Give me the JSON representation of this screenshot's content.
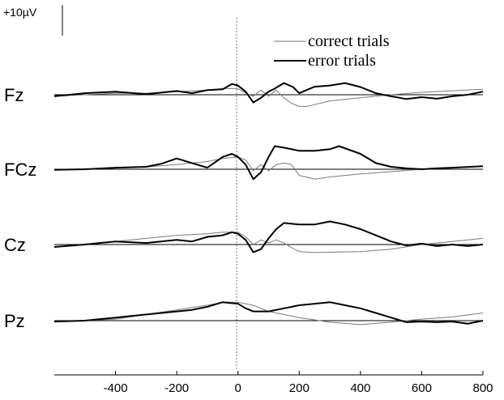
{
  "chart_data": {
    "type": "line",
    "title": "",
    "xlabel": "",
    "ylabel": "",
    "xlim": [
      -600,
      800
    ],
    "x_ticks": [
      -400,
      -200,
      0,
      200,
      400,
      600,
      800
    ],
    "x_tick_labels": [
      "-400",
      "-200",
      "0",
      "200",
      "400",
      "600",
      "800"
    ],
    "grid": false,
    "legend_position": "top-right",
    "scale_bar": {
      "label": "+10µV",
      "value_uV": 10
    },
    "event_marker_x": 0,
    "series_style": {
      "correct trials": {
        "color": "#7a7a7a",
        "width": 1.0
      },
      "error trials": {
        "color": "#000000",
        "width": 2.0
      }
    },
    "legend": [
      "correct trials",
      "error trials"
    ],
    "channels": [
      {
        "name": "Fz",
        "series": [
          {
            "name": "correct trials",
            "x": [
              -600,
              -500,
              -400,
              -300,
              -200,
              -100,
              -50,
              0,
              25,
              50,
              75,
              100,
              125,
              150,
              175,
              200,
              225,
              250,
              300,
              400,
              500,
              600,
              700,
              800
            ],
            "y": [
              -0.5,
              0,
              0.5,
              0.5,
              1,
              1.5,
              2,
              2,
              0.5,
              -0.5,
              1.5,
              -0.5,
              1.5,
              -1,
              -2.8,
              -3.8,
              -3.8,
              -3.2,
              -2,
              -1,
              0,
              0.8,
              1.3,
              1.8
            ]
          },
          {
            "name": "error trials",
            "x": [
              -600,
              -500,
              -400,
              -300,
              -200,
              -150,
              -100,
              -50,
              -20,
              0,
              25,
              50,
              75,
              100,
              120,
              150,
              180,
              200,
              250,
              300,
              350,
              400,
              450,
              500,
              550,
              600,
              650,
              700,
              750,
              800
            ],
            "y": [
              -0.5,
              0.5,
              1,
              0.2,
              1.2,
              0.5,
              1.5,
              1.8,
              3.5,
              3,
              1,
              -2.5,
              -1,
              1,
              2,
              3.8,
              2.5,
              0.5,
              2.6,
              3,
              3.8,
              2.5,
              0.5,
              -0.5,
              -1.4,
              -0.8,
              -1.3,
              -0.5,
              0,
              1
            ]
          }
        ]
      },
      {
        "name": "FCz",
        "series": [
          {
            "name": "correct trials",
            "x": [
              -600,
              -500,
              -400,
              -300,
              -200,
              -100,
              -50,
              0,
              25,
              50,
              75,
              100,
              125,
              150,
              175,
              200,
              250,
              300,
              400,
              500,
              600,
              700,
              800
            ],
            "y": [
              -0.3,
              0,
              0.4,
              0.8,
              1.5,
              2.5,
              3.5,
              4,
              3,
              -0.5,
              1.5,
              -0.5,
              1.5,
              2,
              1.5,
              -2,
              -3.2,
              -2.5,
              -1.5,
              -0.8,
              0,
              0.5,
              1
            ]
          },
          {
            "name": "error trials",
            "x": [
              -600,
              -500,
              -400,
              -300,
              -250,
              -200,
              -150,
              -100,
              -50,
              -20,
              0,
              25,
              50,
              75,
              100,
              120,
              150,
              200,
              250,
              300,
              330,
              400,
              450,
              500,
              550,
              600,
              650,
              700,
              800
            ],
            "y": [
              -0.2,
              0,
              0.5,
              0.8,
              1.8,
              3.5,
              2,
              0.5,
              4,
              5,
              4,
              1.5,
              -3.2,
              -1,
              4,
              7.5,
              7,
              6,
              6,
              6.5,
              7.5,
              5,
              2,
              0.8,
              0.3,
              0,
              0.3,
              0.5,
              1
            ]
          }
        ]
      },
      {
        "name": "Cz",
        "series": [
          {
            "name": "correct trials",
            "x": [
              -600,
              -500,
              -400,
              -300,
              -200,
              -100,
              -50,
              0,
              25,
              50,
              75,
              100,
              125,
              150,
              175,
              200,
              250,
              300,
              400,
              500,
              600,
              700,
              800
            ],
            "y": [
              -0.8,
              0,
              1,
              2,
              3,
              3.5,
              4,
              4,
              2.5,
              0,
              1.5,
              0.5,
              1.5,
              0.5,
              -1,
              -2.3,
              -2.6,
              -2.5,
              -2.3,
              -1.5,
              0,
              1,
              2
            ]
          },
          {
            "name": "error trials",
            "x": [
              -600,
              -500,
              -400,
              -300,
              -200,
              -150,
              -100,
              -50,
              -20,
              0,
              25,
              50,
              75,
              100,
              125,
              150,
              200,
              250,
              300,
              350,
              400,
              450,
              500,
              550,
              600,
              650,
              700,
              750,
              800
            ],
            "y": [
              -0.8,
              0,
              1,
              0.5,
              1.5,
              1,
              2.5,
              3,
              4,
              3.5,
              1.5,
              -2.5,
              -1.5,
              2,
              5,
              7,
              6.5,
              6.5,
              7.5,
              6.5,
              5,
              3,
              1,
              -0.3,
              0.3,
              -0.5,
              0,
              -0.5,
              0
            ]
          }
        ]
      },
      {
        "name": "Pz",
        "series": [
          {
            "name": "correct trials",
            "x": [
              -600,
              -500,
              -400,
              -300,
              -200,
              -100,
              -50,
              0,
              50,
              100,
              200,
              300,
              400,
              500,
              600,
              700,
              800
            ],
            "y": [
              -0.3,
              0,
              0.5,
              2,
              3.5,
              5,
              6,
              6,
              5,
              3,
              1,
              -0.5,
              -1.3,
              -0.5,
              0.5,
              1.2,
              2.5
            ]
          },
          {
            "name": "error trials",
            "x": [
              -600,
              -500,
              -400,
              -300,
              -200,
              -150,
              -100,
              -50,
              0,
              25,
              50,
              100,
              150,
              200,
              250,
              300,
              350,
              400,
              450,
              500,
              550,
              600,
              650,
              700,
              750,
              800
            ],
            "y": [
              -0.3,
              0,
              1,
              2,
              3,
              3.5,
              4.5,
              6,
              5.5,
              4,
              3,
              3,
              4,
              5,
              5.5,
              6,
              5,
              4,
              2.5,
              1,
              -0.5,
              -0.3,
              -0.5,
              -0.3,
              -1,
              0
            ]
          }
        ]
      }
    ]
  }
}
